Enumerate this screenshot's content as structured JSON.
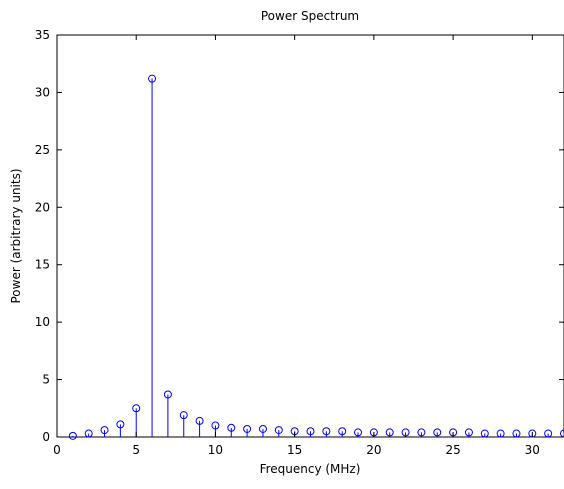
{
  "chart_data": {
    "type": "stem",
    "title": "Power Spectrum",
    "xlabel": "Frequency (MHz)",
    "ylabel": "Power (arbitrary units)",
    "xlim": [
      0,
      32
    ],
    "ylim": [
      0,
      35
    ],
    "xticks": [
      "0",
      "5",
      "10",
      "15",
      "20",
      "25",
      "30"
    ],
    "yticks": [
      "0",
      "5",
      "10",
      "15",
      "20",
      "25",
      "30",
      "35"
    ],
    "grid": false,
    "color": "#0000ff",
    "marker": "circle",
    "x": [
      1,
      2,
      3,
      4,
      5,
      6,
      7,
      8,
      9,
      10,
      11,
      12,
      13,
      14,
      15,
      16,
      17,
      18,
      19,
      20,
      21,
      22,
      23,
      24,
      25,
      26,
      27,
      28,
      29,
      30,
      31,
      32
    ],
    "values": [
      0.1,
      0.3,
      0.6,
      1.1,
      2.5,
      31.2,
      3.7,
      1.9,
      1.4,
      1.0,
      0.8,
      0.7,
      0.7,
      0.6,
      0.5,
      0.5,
      0.5,
      0.5,
      0.4,
      0.4,
      0.4,
      0.4,
      0.4,
      0.4,
      0.4,
      0.4,
      0.3,
      0.3,
      0.3,
      0.3,
      0.3,
      0.3
    ]
  }
}
